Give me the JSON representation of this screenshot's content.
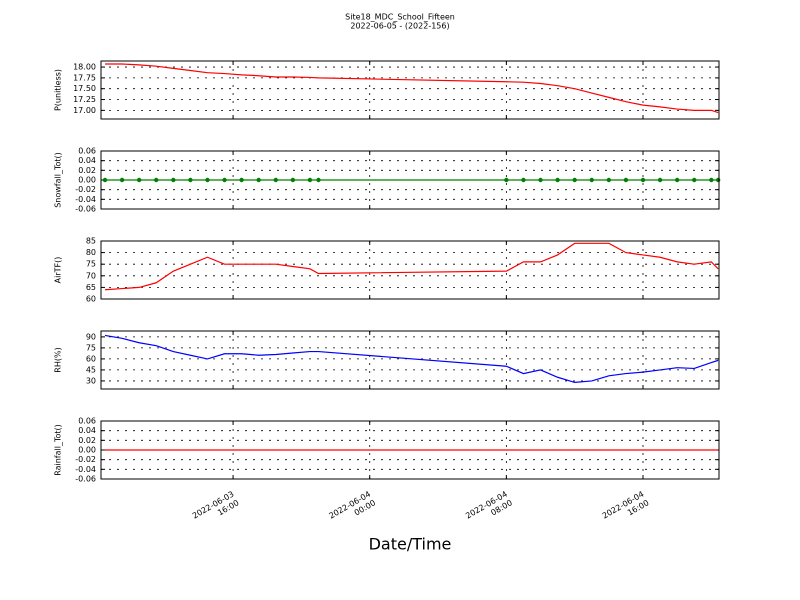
{
  "title": "Site18_MDC_School_Fifteen",
  "subtitle": "2022-06-05 - (2022-156)",
  "xlabel": "Date/Time",
  "xlim": [
    "2022-06-03 08:16",
    "2022-06-04 20:27"
  ],
  "xticks": [
    {
      "value": "2022-06-03 16:00",
      "label": "2022-06-03\n16:00"
    },
    {
      "value": "2022-06-04 00:00",
      "label": "2022-06-04\n00:00"
    },
    {
      "value": "2022-06-04 08:00",
      "label": "2022-06-04\n08:00"
    },
    {
      "value": "2022-06-04 16:00",
      "label": "2022-06-04\n16:00"
    }
  ],
  "x": [
    "2022-06-03 08:30",
    "2022-06-03 09:30",
    "2022-06-03 10:30",
    "2022-06-03 11:30",
    "2022-06-03 12:30",
    "2022-06-03 13:30",
    "2022-06-03 14:30",
    "2022-06-03 15:30",
    "2022-06-03 16:30",
    "2022-06-03 17:30",
    "2022-06-03 18:30",
    "2022-06-03 19:30",
    "2022-06-03 20:30",
    "2022-06-03 21:00",
    "2022-06-04 08:00",
    "2022-06-04 09:00",
    "2022-06-04 10:00",
    "2022-06-04 11:00",
    "2022-06-04 12:00",
    "2022-06-04 13:00",
    "2022-06-04 14:00",
    "2022-06-04 15:00",
    "2022-06-04 16:00",
    "2022-06-04 17:00",
    "2022-06-04 18:00",
    "2022-06-04 19:00",
    "2022-06-04 20:00",
    "2022-06-04 20:24"
  ],
  "chart_data": [
    {
      "type": "line",
      "ylabel": "P(unitless)",
      "ylim": [
        16.8,
        18.14
      ],
      "yticks": [
        {
          "value": 17,
          "label": "17.00"
        },
        {
          "value": 17.25,
          "label": "17.25"
        },
        {
          "value": 17.5,
          "label": "17.50"
        },
        {
          "value": 17.75,
          "label": "17.75"
        },
        {
          "value": 18,
          "label": "18.00"
        }
      ],
      "grid": true,
      "series": [
        {
          "color": "#ff0000",
          "values": [
            18.07,
            18.07,
            18.05,
            18.02,
            17.97,
            17.92,
            17.87,
            17.85,
            17.82,
            17.8,
            17.77,
            17.77,
            17.76,
            17.75,
            17.66,
            17.65,
            17.62,
            17.57,
            17.5,
            17.4,
            17.3,
            17.2,
            17.12,
            17.08,
            17.03,
            17.0,
            17.0,
            16.95
          ]
        }
      ]
    },
    {
      "type": "line",
      "ylabel": "Snowfall_Tot()",
      "ylim": [
        -0.06,
        0.06
      ],
      "yticks": [
        -0.06,
        -0.04,
        -0.02,
        {
          "value": 0,
          "label": "0.00"
        },
        0.02,
        0.04,
        0.06
      ],
      "grid": true,
      "markers": true,
      "series": [
        {
          "color": "#008000",
          "values": [
            0,
            0,
            0,
            0,
            0,
            0,
            0,
            0,
            0,
            0,
            0,
            0,
            0,
            0,
            0,
            0,
            0,
            0,
            0,
            0,
            0,
            0,
            0,
            0,
            0,
            0,
            0,
            0
          ]
        }
      ]
    },
    {
      "type": "line",
      "ylabel": "AirTF()",
      "ylim": [
        60,
        85
      ],
      "yticks": [
        60,
        65,
        70,
        75,
        80,
        85
      ],
      "grid": true,
      "series": [
        {
          "color": "#ff0000",
          "values": [
            64,
            64.5,
            65,
            67,
            72,
            75,
            78,
            75,
            75,
            75,
            75,
            74,
            73,
            71,
            72,
            76,
            76,
            79,
            84,
            84,
            84,
            80,
            79,
            78,
            76,
            75,
            76,
            73
          ]
        }
      ]
    },
    {
      "type": "line",
      "ylabel": "RH(%)",
      "ylim": [
        19,
        98
      ],
      "yticks": [
        30,
        45,
        60,
        75,
        90
      ],
      "grid": true,
      "series": [
        {
          "color": "#0000ff",
          "values": [
            92,
            88,
            82,
            78,
            70,
            65,
            60,
            67,
            67,
            65,
            66,
            68,
            70,
            70,
            50,
            40,
            45,
            35,
            28,
            30,
            37,
            40,
            42,
            45,
            48,
            47,
            55,
            58
          ]
        }
      ]
    },
    {
      "type": "line",
      "ylabel": "Rainfall_Tot()",
      "ylim": [
        -0.06,
        0.06
      ],
      "yticks": [
        -0.06,
        -0.04,
        -0.02,
        {
          "value": 0,
          "label": "0.00"
        },
        0.02,
        0.04,
        0.06
      ],
      "grid": true,
      "series": [
        {
          "color": "#ff0000",
          "values": [
            0,
            0,
            0,
            0,
            0,
            0,
            0,
            0,
            0,
            0,
            0,
            0,
            0,
            0,
            0,
            0,
            0,
            0,
            0,
            0,
            0,
            0,
            0,
            0,
            0,
            0,
            0,
            0
          ]
        }
      ]
    }
  ]
}
